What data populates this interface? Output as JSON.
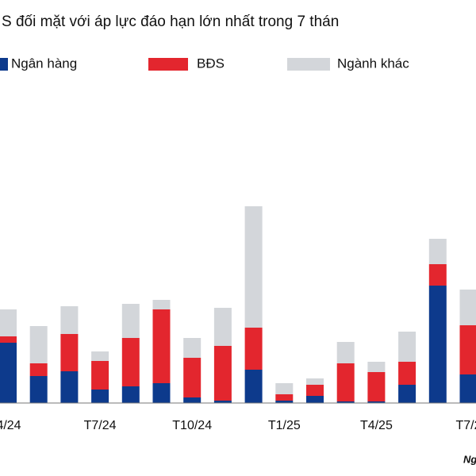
{
  "chart_data": {
    "type": "stacked_bar",
    "title": "S đối mặt với áp lực đáo hạn lớn nhất trong 7 thán",
    "source": "Ng",
    "categories": [
      "4/24",
      null,
      null,
      "T7/24",
      null,
      null,
      "T10/24",
      null,
      null,
      "T1/25",
      null,
      null,
      "T4/25",
      null,
      null,
      "T7/2"
    ],
    "series": [
      {
        "name": "Ngân hàng",
        "color": "#0d3a8c",
        "values": [
          76,
          34,
          40,
          17,
          21,
          25,
          7,
          3,
          42,
          3,
          9,
          2,
          2,
          23,
          148,
          36
        ]
      },
      {
        "name": "BĐS",
        "color": "#e3262e",
        "values": [
          8,
          16,
          47,
          36,
          61,
          93,
          50,
          69,
          53,
          8,
          14,
          48,
          37,
          29,
          27,
          62
        ]
      },
      {
        "name": "Ngành khác",
        "color": "#d3d6da",
        "values": [
          34,
          47,
          35,
          12,
          43,
          12,
          25,
          48,
          153,
          14,
          8,
          27,
          13,
          38,
          32,
          45
        ]
      }
    ],
    "ylim": [
      0,
      400
    ]
  }
}
